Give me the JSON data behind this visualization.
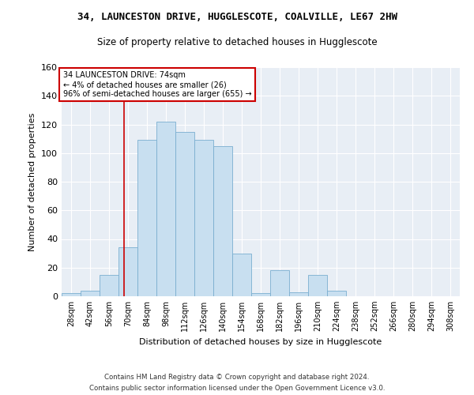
{
  "title1": "34, LAUNCESTON DRIVE, HUGGLESCOTE, COALVILLE, LE67 2HW",
  "title2": "Size of property relative to detached houses in Hugglescote",
  "xlabel": "Distribution of detached houses by size in Hugglescote",
  "ylabel": "Number of detached properties",
  "bin_labels": [
    "28sqm",
    "42sqm",
    "56sqm",
    "70sqm",
    "84sqm",
    "98sqm",
    "112sqm",
    "126sqm",
    "140sqm",
    "154sqm",
    "168sqm",
    "182sqm",
    "196sqm",
    "210sqm",
    "224sqm",
    "238sqm",
    "252sqm",
    "266sqm",
    "280sqm",
    "294sqm",
    "308sqm"
  ],
  "bar_values": [
    2,
    4,
    15,
    34,
    109,
    122,
    115,
    109,
    105,
    30,
    2,
    18,
    3,
    15,
    4,
    0,
    0,
    0,
    0,
    0,
    0
  ],
  "bar_color": "#c8dff0",
  "bar_edge_color": "#7aaed0",
  "vline_x": 74,
  "bin_edges": [
    28,
    42,
    56,
    70,
    84,
    98,
    112,
    126,
    140,
    154,
    168,
    182,
    196,
    210,
    224,
    238,
    252,
    266,
    280,
    294,
    308
  ],
  "bin_width": 14,
  "annotation_line1": "34 LAUNCESTON DRIVE: 74sqm",
  "annotation_line2": "← 4% of detached houses are smaller (26)",
  "annotation_line3": "96% of semi-detached houses are larger (655) →",
  "annotation_box_color": "#ffffff",
  "annotation_box_edge_color": "#cc0000",
  "vline_color": "#cc0000",
  "ylim": [
    0,
    160
  ],
  "yticks": [
    0,
    20,
    40,
    60,
    80,
    100,
    120,
    140,
    160
  ],
  "footer_line1": "Contains HM Land Registry data © Crown copyright and database right 2024.",
  "footer_line2": "Contains public sector information licensed under the Open Government Licence v3.0.",
  "plot_bg_color": "#e8eef5"
}
